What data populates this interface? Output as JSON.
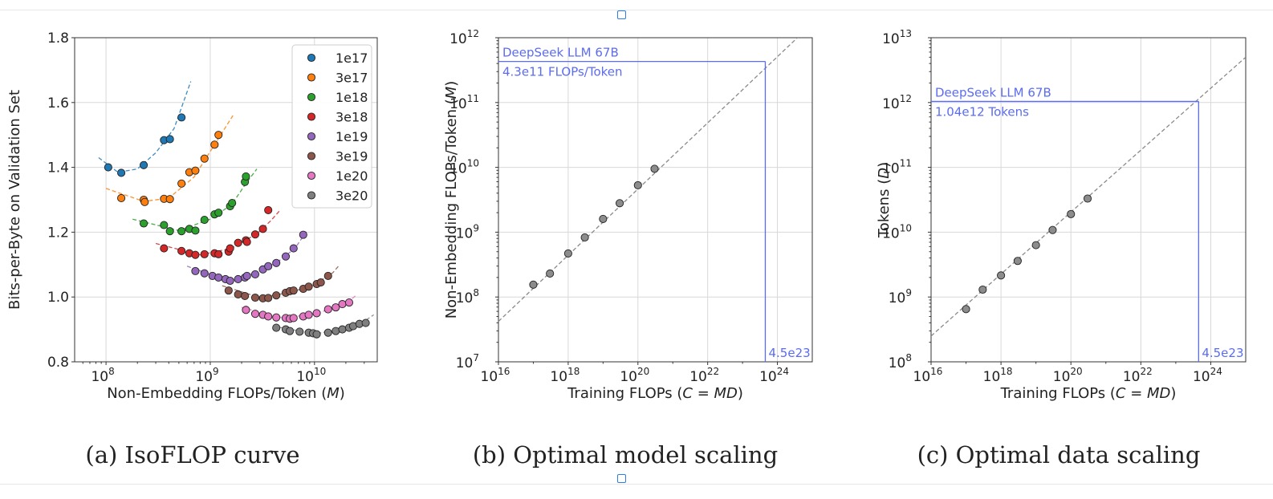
{
  "accent_color": "#5b6cf0",
  "chart_data": [
    {
      "type": "scatter",
      "title": "",
      "caption": "(a)  IsoFLOP curve",
      "xlabel": "Non-Embedding FLOPs/Token (M)",
      "ylabel": "Bits-per-Byte on Validation Set",
      "xscale": "log",
      "xlim": [
        50000000,
        40000000000
      ],
      "ylim": [
        0.8,
        1.8
      ],
      "x_ticks": [
        "10^8",
        "10^9",
        "10^10"
      ],
      "y_ticks": [
        "0.8",
        "1.0",
        "1.2",
        "1.4",
        "1.6",
        "1.8"
      ],
      "grid": true,
      "legend_position": "top-right",
      "series": [
        {
          "name": "1e17",
          "color": "#1f77b4",
          "points": [
            [
              105000000.0,
              1.4
            ],
            [
              140000000.0,
              1.383
            ],
            [
              230000000.0,
              1.407
            ],
            [
              360000000.0,
              1.484
            ],
            [
              410000000.0,
              1.487
            ],
            [
              530000000.0,
              1.554
            ]
          ],
          "fit": [
            [
              85000000.0,
              1.43
            ],
            [
              130000000.0,
              1.385
            ],
            [
              200000000.0,
              1.395
            ],
            [
              300000000.0,
              1.445
            ],
            [
              450000000.0,
              1.52
            ],
            [
              650000000.0,
              1.665
            ]
          ]
        },
        {
          "name": "3e17",
          "color": "#ff7f0e",
          "points": [
            [
              140000000.0,
              1.305
            ],
            [
              230000000.0,
              1.3
            ],
            [
              235000000.0,
              1.293
            ],
            [
              360000000.0,
              1.303
            ],
            [
              410000000.0,
              1.302
            ],
            [
              530000000.0,
              1.35
            ],
            [
              630000000.0,
              1.385
            ],
            [
              720000000.0,
              1.39
            ],
            [
              880000000.0,
              1.427
            ],
            [
              1100000000.0,
              1.47
            ],
            [
              1200000000.0,
              1.5
            ]
          ],
          "fit": [
            [
              100000000.0,
              1.335
            ],
            [
              230000000.0,
              1.295
            ],
            [
              400000000.0,
              1.305
            ],
            [
              700000000.0,
              1.37
            ],
            [
              1100000000.0,
              1.47
            ],
            [
              1650000000.0,
              1.56
            ]
          ]
        },
        {
          "name": "1e18",
          "color": "#2ca02c",
          "points": [
            [
              230000000.0,
              1.227
            ],
            [
              360000000.0,
              1.222
            ],
            [
              410000000.0,
              1.203
            ],
            [
              530000000.0,
              1.203
            ],
            [
              630000000.0,
              1.21
            ],
            [
              720000000.0,
              1.205
            ],
            [
              880000000.0,
              1.238
            ],
            [
              1100000000.0,
              1.255
            ],
            [
              1200000000.0,
              1.26
            ],
            [
              1550000000.0,
              1.28
            ],
            [
              1620000000.0,
              1.29
            ],
            [
              2150000000.0,
              1.355
            ],
            [
              2200000000.0,
              1.372
            ]
          ],
          "fit": [
            [
              180000000.0,
              1.24
            ],
            [
              500000000.0,
              1.205
            ],
            [
              1000000000.0,
              1.24
            ],
            [
              1600000000.0,
              1.285
            ],
            [
              2200000000.0,
              1.35
            ],
            [
              2800000000.0,
              1.395
            ]
          ]
        },
        {
          "name": "3e18",
          "color": "#d62728",
          "points": [
            [
              360000000.0,
              1.15
            ],
            [
              530000000.0,
              1.142
            ],
            [
              630000000.0,
              1.135
            ],
            [
              720000000.0,
              1.13
            ],
            [
              880000000.0,
              1.132
            ],
            [
              1100000000.0,
              1.135
            ],
            [
              1200000000.0,
              1.132
            ],
            [
              1500000000.0,
              1.14
            ],
            [
              1550000000.0,
              1.15
            ],
            [
              1850000000.0,
              1.167
            ],
            [
              2200000000.0,
              1.175
            ],
            [
              2250000000.0,
              1.17
            ],
            [
              2700000000.0,
              1.193
            ],
            [
              3200000000.0,
              1.21
            ],
            [
              3600000000.0,
              1.268
            ]
          ],
          "fit": [
            [
              300000000.0,
              1.165
            ],
            [
              800000000.0,
              1.13
            ],
            [
              1600000000.0,
              1.15
            ],
            [
              2800000000.0,
              1.195
            ],
            [
              3800000000.0,
              1.235
            ],
            [
              4600000000.0,
              1.265
            ]
          ]
        },
        {
          "name": "1e19",
          "color": "#9467bd",
          "points": [
            [
              720000000.0,
              1.08
            ],
            [
              880000000.0,
              1.073
            ],
            [
              1050000000.0,
              1.065
            ],
            [
              1200000000.0,
              1.06
            ],
            [
              1400000000.0,
              1.055
            ],
            [
              1550000000.0,
              1.05
            ],
            [
              1850000000.0,
              1.055
            ],
            [
              2150000000.0,
              1.06
            ],
            [
              2250000000.0,
              1.065
            ],
            [
              2700000000.0,
              1.07
            ],
            [
              3200000000.0,
              1.085
            ],
            [
              3600000000.0,
              1.095
            ],
            [
              4300000000.0,
              1.105
            ],
            [
              5300000000.0,
              1.125
            ],
            [
              6300000000.0,
              1.15
            ],
            [
              7800000000.0,
              1.192
            ]
          ],
          "fit": [
            [
              600000000.0,
              1.095
            ],
            [
              1500000000.0,
              1.05
            ],
            [
              2800000000.0,
              1.075
            ],
            [
              4500000000.0,
              1.11
            ],
            [
              6500000000.0,
              1.15
            ],
            [
              8500000000.0,
              1.205
            ]
          ]
        },
        {
          "name": "3e19",
          "color": "#8c564b",
          "points": [
            [
              1500000000.0,
              1.02
            ],
            [
              1850000000.0,
              1.008
            ],
            [
              2150000000.0,
              1.003
            ],
            [
              2700000000.0,
              0.998
            ],
            [
              3200000000.0,
              0.996
            ],
            [
              3600000000.0,
              0.997
            ],
            [
              4300000000.0,
              1.005
            ],
            [
              5300000000.0,
              1.013
            ],
            [
              5800000000.0,
              1.018
            ],
            [
              6300000000.0,
              1.02
            ],
            [
              7800000000.0,
              1.025
            ],
            [
              8800000000.0,
              1.032
            ],
            [
              10500000000.0,
              1.04
            ],
            [
              11500000000.0,
              1.045
            ],
            [
              13500000000.0,
              1.065
            ]
          ],
          "fit": [
            [
              1300000000.0,
              1.035
            ],
            [
              3000000000.0,
              0.998
            ],
            [
              6000000000.0,
              1.015
            ],
            [
              10000000000.0,
              1.038
            ],
            [
              15000000000.0,
              1.075
            ],
            [
              17500000000.0,
              1.1
            ]
          ]
        },
        {
          "name": "1e20",
          "color": "#e377c2",
          "points": [
            [
              2200000000.0,
              0.96
            ],
            [
              2700000000.0,
              0.948
            ],
            [
              3200000000.0,
              0.945
            ],
            [
              3600000000.0,
              0.94
            ],
            [
              4300000000.0,
              0.937
            ],
            [
              5300000000.0,
              0.935
            ],
            [
              5800000000.0,
              0.933
            ],
            [
              6300000000.0,
              0.935
            ],
            [
              7800000000.0,
              0.94
            ],
            [
              8800000000.0,
              0.945
            ],
            [
              10500000000.0,
              0.95
            ],
            [
              13500000000.0,
              0.962
            ],
            [
              16000000000.0,
              0.968
            ],
            [
              18500000000.0,
              0.978
            ],
            [
              21500000000.0,
              0.983
            ]
          ],
          "fit": [
            [
              2000000000.0,
              0.968
            ],
            [
              5000000000.0,
              0.935
            ],
            [
              10000000000.0,
              0.948
            ],
            [
              16000000000.0,
              0.968
            ],
            [
              21000000000.0,
              0.985
            ],
            [
              25000000000.0,
              1.005
            ]
          ]
        },
        {
          "name": "3e20",
          "color": "#7f7f7f",
          "points": [
            [
              4300000000.0,
              0.905
            ],
            [
              5300000000.0,
              0.9
            ],
            [
              5800000000.0,
              0.895
            ],
            [
              7200000000.0,
              0.893
            ],
            [
              8800000000.0,
              0.89
            ],
            [
              9700000000.0,
              0.888
            ],
            [
              10500000000.0,
              0.885
            ],
            [
              13500000000.0,
              0.89
            ],
            [
              16000000000.0,
              0.895
            ],
            [
              18500000000.0,
              0.9
            ],
            [
              21500000000.0,
              0.905
            ],
            [
              23500000000.0,
              0.91
            ],
            [
              27000000000.0,
              0.917
            ],
            [
              31000000000.0,
              0.92
            ]
          ],
          "fit": [
            [
              4000000000.0,
              0.91
            ],
            [
              10000000000.0,
              0.887
            ],
            [
              20000000000.0,
              0.9
            ],
            [
              30000000000.0,
              0.925
            ],
            [
              37000000000.0,
              0.945
            ]
          ]
        }
      ]
    },
    {
      "type": "scatter",
      "title": "",
      "caption": "(b)  Optimal model scaling",
      "xlabel": "Training FLOPs (C = MD)",
      "ylabel": "Non-Embedding FLOPs/Token (M)",
      "xscale": "log",
      "yscale": "log",
      "xlim": [
        1e+16,
        1e+25
      ],
      "ylim": [
        10000000.0,
        1000000000000.0
      ],
      "x_ticks": [
        "10^16",
        "10^18",
        "10^20",
        "10^22",
        "10^24"
      ],
      "y_ticks": [
        "10^7",
        "10^8",
        "10^9",
        "10^10",
        "10^11",
        "10^12"
      ],
      "grid": true,
      "points": [
        [
          1e+17,
          155000000.0
        ],
        [
          3e+17,
          230000000.0
        ],
        [
          1e+18,
          470000000.0
        ],
        [
          3e+18,
          830000000.0
        ],
        [
          1e+19,
          1600000000.0
        ],
        [
          3e+19,
          2800000000.0
        ],
        [
          1e+20,
          5300000000.0
        ],
        [
          3e+20,
          9500000000.0
        ]
      ],
      "fit_line": [
        [
          1e+16,
          42000000.0
        ],
        [
          1e+25,
          1650000000000.0
        ]
      ],
      "annotation": {
        "x": 4.5e+23,
        "y": 430000000000.0,
        "label_1": "DeepSeek LLM 67B",
        "label_2": "4.3e11 FLOPs/Token",
        "x_label": "4.5e23"
      }
    },
    {
      "type": "scatter",
      "title": "",
      "caption": "(c)  Optimal data scaling",
      "xlabel": "Training FLOPs (C = MD)",
      "ylabel": "Tokens (D)",
      "xscale": "log",
      "yscale": "log",
      "xlim": [
        1e+16,
        1e+25
      ],
      "ylim": [
        100000000.0,
        10000000000000.0
      ],
      "x_ticks": [
        "10^16",
        "10^18",
        "10^20",
        "10^22",
        "10^24"
      ],
      "y_ticks": [
        "10^8",
        "10^9",
        "10^10",
        "10^11",
        "10^12",
        "10^13"
      ],
      "grid": true,
      "points": [
        [
          1e+17,
          650000000.0
        ],
        [
          3e+17,
          1300000000.0
        ],
        [
          1e+18,
          2150000000.0
        ],
        [
          3e+18,
          3600000000.0
        ],
        [
          1e+19,
          6300000000.0
        ],
        [
          3e+19,
          10800000000.0
        ],
        [
          1e+20,
          19000000000.0
        ],
        [
          3e+20,
          33000000000.0
        ]
      ],
      "fit_line": [
        [
          1e+16,
          250000000.0
        ],
        [
          1e+25,
          5000000000000.0
        ]
      ],
      "annotation": {
        "x": 4.5e+23,
        "y": 1040000000000.0,
        "label_1": "DeepSeek LLM 67B",
        "label_2": "1.04e12 Tokens",
        "x_label": "4.5e23"
      }
    }
  ]
}
